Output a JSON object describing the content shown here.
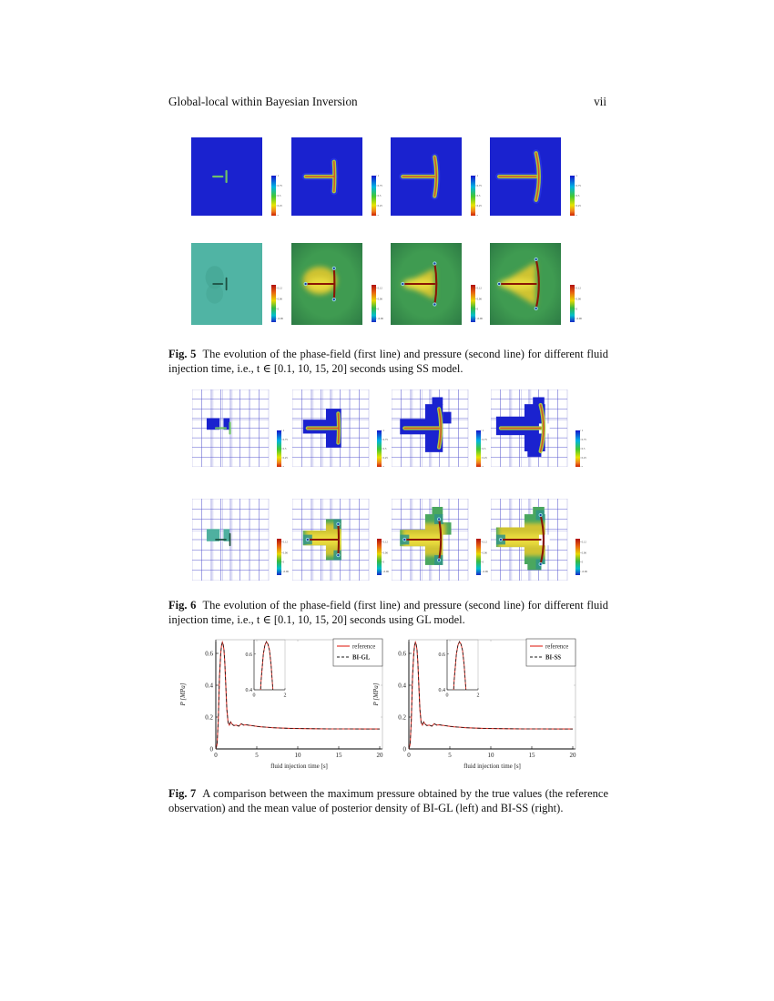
{
  "page": {
    "header_title": "Global-local within Bayesian Inversion",
    "page_number": "vii"
  },
  "figures": {
    "fig5": {
      "label": "Fig. 5",
      "caption": "The evolution of the phase-field (first line) and pressure (second line) for different fluid injection time, i.e., t ∈ [0.1, 10, 15, 20] seconds using SS model.",
      "times": [
        "0.1",
        "10",
        "15",
        "20"
      ],
      "phase_colorbar_ticks": [
        "1",
        "0.75",
        "0.5",
        "0.25",
        "0"
      ],
      "pressure_colorbar_ticks": [
        "0.12",
        "0.06",
        "0",
        "-0.06"
      ]
    },
    "fig6": {
      "label": "Fig. 6",
      "caption": "The evolution of the phase-field (first line) and pressure (second line) for different fluid injection time, i.e., t ∈ [0.1, 10, 15, 20] seconds using GL model.",
      "times": [
        "0.1",
        "10",
        "15",
        "20"
      ],
      "phase_colorbar_ticks": [
        "1",
        "0.75",
        "0.5",
        "0.25",
        "0"
      ],
      "pressure_colorbar_ticks": [
        "0.12",
        "0.06",
        "0",
        "-0.06"
      ]
    },
    "fig7": {
      "label": "Fig. 7",
      "caption": "A comparison between the maximum pressure obtained by the true values (the reference observation) and the mean value of posterior density of BI-GL (left) and BI-SS (right)."
    }
  },
  "chart_data": [
    {
      "type": "line",
      "title": "",
      "xlabel": "fluid injection time [s]",
      "ylabel": "P [MPa]",
      "xlim": [
        0,
        20
      ],
      "ylim": [
        0,
        0.7
      ],
      "xticks": [
        0,
        5,
        10,
        15,
        20
      ],
      "yticks": [
        0,
        0.2,
        0.4,
        0.6
      ],
      "grid": false,
      "legend_position": "top-right",
      "x": [
        0,
        0.15,
        0.3,
        0.45,
        0.6,
        0.7,
        0.8,
        0.9,
        1.0,
        1.1,
        1.2,
        1.35,
        1.5,
        1.65,
        1.8,
        2.0,
        2.2,
        2.5,
        2.8,
        3.1,
        3.4,
        3.7,
        4.0,
        4.5,
        5.0,
        5.5,
        6.0,
        7.0,
        8.0,
        9.0,
        10,
        12,
        14,
        16,
        18,
        20
      ],
      "series": [
        {
          "name": "reference",
          "color": "#e2372e",
          "style": "solid",
          "y": [
            0,
            0.03,
            0.18,
            0.45,
            0.6,
            0.65,
            0.67,
            0.655,
            0.62,
            0.54,
            0.42,
            0.25,
            0.165,
            0.15,
            0.17,
            0.155,
            0.147,
            0.15,
            0.143,
            0.158,
            0.15,
            0.152,
            0.149,
            0.146,
            0.142,
            0.139,
            0.137,
            0.133,
            0.131,
            0.129,
            0.128,
            0.127,
            0.126,
            0.126,
            0.125,
            0.125
          ]
        },
        {
          "name": "BI-GL",
          "color": "#1a1a1a",
          "style": "dashed",
          "y": [
            0,
            0.03,
            0.18,
            0.45,
            0.6,
            0.65,
            0.67,
            0.655,
            0.62,
            0.54,
            0.42,
            0.25,
            0.165,
            0.15,
            0.17,
            0.155,
            0.147,
            0.15,
            0.143,
            0.158,
            0.15,
            0.152,
            0.149,
            0.146,
            0.142,
            0.139,
            0.137,
            0.133,
            0.131,
            0.129,
            0.128,
            0.127,
            0.126,
            0.126,
            0.125,
            0.125
          ]
        }
      ],
      "inset": {
        "xlim": [
          0,
          2
        ],
        "ylim": [
          0.4,
          0.68
        ],
        "xticks": [
          0,
          2
        ],
        "yticks": [
          0.4,
          0.6
        ]
      }
    },
    {
      "type": "line",
      "title": "",
      "xlabel": "fluid injection time [s]",
      "ylabel": "P [MPa]",
      "xlim": [
        0,
        20
      ],
      "ylim": [
        0,
        0.7
      ],
      "xticks": [
        0,
        5,
        10,
        15,
        20
      ],
      "yticks": [
        0,
        0.2,
        0.4,
        0.6
      ],
      "grid": false,
      "legend_position": "top-right",
      "x": [
        0,
        0.15,
        0.3,
        0.45,
        0.6,
        0.7,
        0.8,
        0.9,
        1.0,
        1.1,
        1.2,
        1.35,
        1.5,
        1.65,
        1.8,
        2.0,
        2.2,
        2.5,
        2.8,
        3.1,
        3.4,
        3.7,
        4.0,
        4.5,
        5.0,
        5.5,
        6.0,
        7.0,
        8.0,
        9.0,
        10,
        12,
        14,
        16,
        18,
        20
      ],
      "series": [
        {
          "name": "reference",
          "color": "#e2372e",
          "style": "solid",
          "y": [
            0,
            0.03,
            0.18,
            0.45,
            0.6,
            0.65,
            0.67,
            0.655,
            0.62,
            0.54,
            0.42,
            0.25,
            0.165,
            0.15,
            0.17,
            0.155,
            0.147,
            0.15,
            0.143,
            0.158,
            0.15,
            0.152,
            0.149,
            0.146,
            0.142,
            0.139,
            0.137,
            0.133,
            0.131,
            0.129,
            0.128,
            0.127,
            0.126,
            0.126,
            0.125,
            0.125
          ]
        },
        {
          "name": "BI-SS",
          "color": "#1a1a1a",
          "style": "dashed",
          "y": [
            0,
            0.03,
            0.18,
            0.45,
            0.6,
            0.65,
            0.67,
            0.655,
            0.62,
            0.54,
            0.42,
            0.25,
            0.165,
            0.15,
            0.17,
            0.155,
            0.147,
            0.15,
            0.143,
            0.158,
            0.15,
            0.152,
            0.149,
            0.146,
            0.142,
            0.139,
            0.137,
            0.133,
            0.131,
            0.129,
            0.128,
            0.127,
            0.126,
            0.126,
            0.125,
            0.125
          ]
        }
      ],
      "inset": {
        "xlim": [
          0,
          2
        ],
        "ylim": [
          0.4,
          0.68
        ],
        "xticks": [
          0,
          2
        ],
        "yticks": [
          0.4,
          0.6
        ]
      }
    }
  ],
  "colors": {
    "phase_background_blue": "#1a22cf",
    "grid_line_blue": "#5c5cd0",
    "pressure_teal": "#50b4a4",
    "pressure_green": "#3f9b51",
    "pressure_yellow": "#d7c52e",
    "crack_core_red": "#8a1605",
    "crack_halo_green": "#a9cc3f",
    "reference_red": "#e2372e"
  }
}
